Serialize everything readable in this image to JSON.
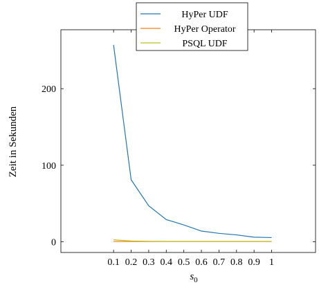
{
  "chart_data": {
    "type": "line",
    "xlabel": "s",
    "xlabel_sub": "0",
    "ylabel": "Zeit in Sekunden",
    "x": [
      0.1,
      0.2,
      0.3,
      0.4,
      0.5,
      0.6,
      0.7,
      0.8,
      0.9,
      1
    ],
    "x_tick_labels": [
      "0.1",
      "0.2",
      "0.3",
      "0.4",
      "0.5",
      "0.6",
      "0.7",
      "0.8",
      "0.9",
      "1"
    ],
    "y_ticks": [
      0,
      100,
      200
    ],
    "y_tick_labels": [
      "0",
      "100",
      "200"
    ],
    "xlim": [
      -0.2,
      1.25
    ],
    "ylim": [
      -14,
      277
    ],
    "grid": false,
    "legend_position": "top-center",
    "series": [
      {
        "name": "HyPer UDF",
        "color": "#1f77b4",
        "values": [
          257,
          81,
          47,
          29,
          22,
          14,
          11,
          9,
          6,
          5.5
        ]
      },
      {
        "name": "HyPer Operator",
        "color": "#ff7f0e",
        "values": [
          0.3,
          0.3,
          0.3,
          0.3,
          0.3,
          0.3,
          0.3,
          0.3,
          0.3,
          0.3
        ]
      },
      {
        "name": "PSQL UDF",
        "color": "#bcbd22",
        "values": [
          2.5,
          1.0,
          0.6,
          0.5,
          0.5,
          0.5,
          0.5,
          0.5,
          0.5,
          0.5
        ]
      }
    ]
  }
}
